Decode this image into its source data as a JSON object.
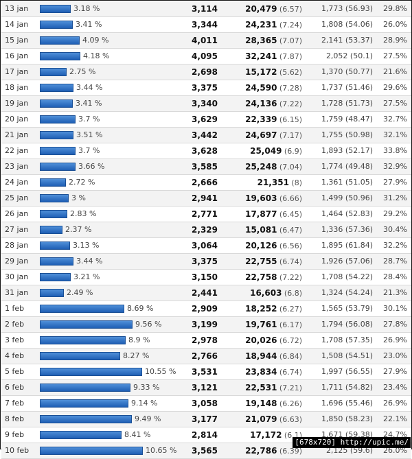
{
  "chart_data": {
    "type": "bar",
    "title": "",
    "xlabel": "",
    "ylabel": "",
    "xlim": [
      0,
      11
    ],
    "columns": [
      "date",
      "share_pct",
      "visits",
      "pageviews",
      "pages_per_visit",
      "new_visitors",
      "new_visitor_pct",
      "bounce_rate"
    ],
    "rows": [
      {
        "date": "13 jan",
        "share": "3.18 %",
        "share_val": 3.18,
        "visits": "3,114",
        "pageviews": "20,479",
        "ppv": "(6.57)",
        "new": "1,773 (56.93)",
        "bounce": "29.8%"
      },
      {
        "date": "14 jan",
        "share": "3.41 %",
        "share_val": 3.41,
        "visits": "3,344",
        "pageviews": "24,231",
        "ppv": "(7.24)",
        "new": "1,808 (54.06)",
        "bounce": "26.0%"
      },
      {
        "date": "15 jan",
        "share": "4.09 %",
        "share_val": 4.09,
        "visits": "4,011",
        "pageviews": "28,365",
        "ppv": "(7.07)",
        "new": "2,141 (53.37)",
        "bounce": "28.9%"
      },
      {
        "date": "16 jan",
        "share": "4.18 %",
        "share_val": 4.18,
        "visits": "4,095",
        "pageviews": "32,241",
        "ppv": "(7.87)",
        "new": "2,052 (50.1)",
        "bounce": "27.5%"
      },
      {
        "date": "17 jan",
        "share": "2.75 %",
        "share_val": 2.75,
        "visits": "2,698",
        "pageviews": "15,172",
        "ppv": "(5.62)",
        "new": "1,370 (50.77)",
        "bounce": "21.6%"
      },
      {
        "date": "18 jan",
        "share": "3.44 %",
        "share_val": 3.44,
        "visits": "3,375",
        "pageviews": "24,590",
        "ppv": "(7.28)",
        "new": "1,737 (51.46)",
        "bounce": "29.6%"
      },
      {
        "date": "19 jan",
        "share": "3.41 %",
        "share_val": 3.41,
        "visits": "3,340",
        "pageviews": "24,136",
        "ppv": "(7.22)",
        "new": "1,728 (51.73)",
        "bounce": "27.5%"
      },
      {
        "date": "20 jan",
        "share": "3.7 %",
        "share_val": 3.7,
        "visits": "3,629",
        "pageviews": "22,339",
        "ppv": "(6.15)",
        "new": "1,759 (48.47)",
        "bounce": "32.7%"
      },
      {
        "date": "21 jan",
        "share": "3.51 %",
        "share_val": 3.51,
        "visits": "3,442",
        "pageviews": "24,697",
        "ppv": "(7.17)",
        "new": "1,755 (50.98)",
        "bounce": "32.1%"
      },
      {
        "date": "22 jan",
        "share": "3.7 %",
        "share_val": 3.7,
        "visits": "3,628",
        "pageviews": "25,049",
        "ppv": "(6.9)",
        "new": "1,893 (52.17)",
        "bounce": "33.8%"
      },
      {
        "date": "23 jan",
        "share": "3.66 %",
        "share_val": 3.66,
        "visits": "3,585",
        "pageviews": "25,248",
        "ppv": "(7.04)",
        "new": "1,774 (49.48)",
        "bounce": "32.9%"
      },
      {
        "date": "24 jan",
        "share": "2.72 %",
        "share_val": 2.72,
        "visits": "2,666",
        "pageviews": "21,351",
        "ppv": "(8)",
        "new": "1,361 (51.05)",
        "bounce": "27.9%"
      },
      {
        "date": "25 jan",
        "share": "3 %",
        "share_val": 3.0,
        "visits": "2,941",
        "pageviews": "19,603",
        "ppv": "(6.66)",
        "new": "1,499 (50.96)",
        "bounce": "31.2%"
      },
      {
        "date": "26 jan",
        "share": "2.83 %",
        "share_val": 2.83,
        "visits": "2,771",
        "pageviews": "17,877",
        "ppv": "(6.45)",
        "new": "1,464 (52.83)",
        "bounce": "29.2%"
      },
      {
        "date": "27 jan",
        "share": "2.37 %",
        "share_val": 2.37,
        "visits": "2,329",
        "pageviews": "15,081",
        "ppv": "(6.47)",
        "new": "1,336 (57.36)",
        "bounce": "30.4%"
      },
      {
        "date": "28 jan",
        "share": "3.13 %",
        "share_val": 3.13,
        "visits": "3,064",
        "pageviews": "20,126",
        "ppv": "(6.56)",
        "new": "1,895 (61.84)",
        "bounce": "32.2%"
      },
      {
        "date": "29 jan",
        "share": "3.44 %",
        "share_val": 3.44,
        "visits": "3,375",
        "pageviews": "22,755",
        "ppv": "(6.74)",
        "new": "1,926 (57.06)",
        "bounce": "28.7%"
      },
      {
        "date": "30 jan",
        "share": "3.21 %",
        "share_val": 3.21,
        "visits": "3,150",
        "pageviews": "22,758",
        "ppv": "(7.22)",
        "new": "1,708 (54.22)",
        "bounce": "28.4%"
      },
      {
        "date": "31 jan",
        "share": "2.49 %",
        "share_val": 2.49,
        "visits": "2,441",
        "pageviews": "16,603",
        "ppv": "(6.8)",
        "new": "1,324 (54.24)",
        "bounce": "21.3%"
      },
      {
        "date": "1 feb",
        "share": "8.69 %",
        "share_val": 8.69,
        "visits": "2,909",
        "pageviews": "18,252",
        "ppv": "(6.27)",
        "new": "1,565 (53.79)",
        "bounce": "30.1%"
      },
      {
        "date": "2 feb",
        "share": "9.56 %",
        "share_val": 9.56,
        "visits": "3,199",
        "pageviews": "19,761",
        "ppv": "(6.17)",
        "new": "1,794 (56.08)",
        "bounce": "27.8%"
      },
      {
        "date": "3 feb",
        "share": "8.9 %",
        "share_val": 8.9,
        "visits": "2,978",
        "pageviews": "20,026",
        "ppv": "(6.72)",
        "new": "1,708 (57.35)",
        "bounce": "26.9%"
      },
      {
        "date": "4 feb",
        "share": "8.27 %",
        "share_val": 8.27,
        "visits": "2,766",
        "pageviews": "18,944",
        "ppv": "(6.84)",
        "new": "1,508 (54.51)",
        "bounce": "23.0%"
      },
      {
        "date": "5 feb",
        "share": "10.55 %",
        "share_val": 10.55,
        "visits": "3,531",
        "pageviews": "23,834",
        "ppv": "(6.74)",
        "new": "1,997 (56.55)",
        "bounce": "27.9%"
      },
      {
        "date": "6 feb",
        "share": "9.33 %",
        "share_val": 9.33,
        "visits": "3,121",
        "pageviews": "22,531",
        "ppv": "(7.21)",
        "new": "1,711 (54.82)",
        "bounce": "23.4%"
      },
      {
        "date": "7 feb",
        "share": "9.14 %",
        "share_val": 9.14,
        "visits": "3,058",
        "pageviews": "19,148",
        "ppv": "(6.26)",
        "new": "1,696 (55.46)",
        "bounce": "26.9%"
      },
      {
        "date": "8 feb",
        "share": "9.49 %",
        "share_val": 9.49,
        "visits": "3,177",
        "pageviews": "21,079",
        "ppv": "(6.63)",
        "new": "1,850 (58.23)",
        "bounce": "22.1%"
      },
      {
        "date": "9 feb",
        "share": "8.41 %",
        "share_val": 8.41,
        "visits": "2,814",
        "pageviews": "17,172",
        "ppv": "(6.1)",
        "new": "1,671 (59.38)",
        "bounce": "24.7%"
      },
      {
        "date": "10 feb",
        "share": "10.65 %",
        "share_val": 10.65,
        "visits": "3,565",
        "pageviews": "22,786",
        "ppv": "(6.39)",
        "new": "2,125 (59.6)",
        "bounce": "26.0%"
      }
    ]
  },
  "badge": {
    "text": "[678x720] http://upic.me/"
  },
  "colors": {
    "bar": "#1f5fb4",
    "bar_light": "#4f8fd8",
    "alt_row": "#f3f3f3"
  }
}
